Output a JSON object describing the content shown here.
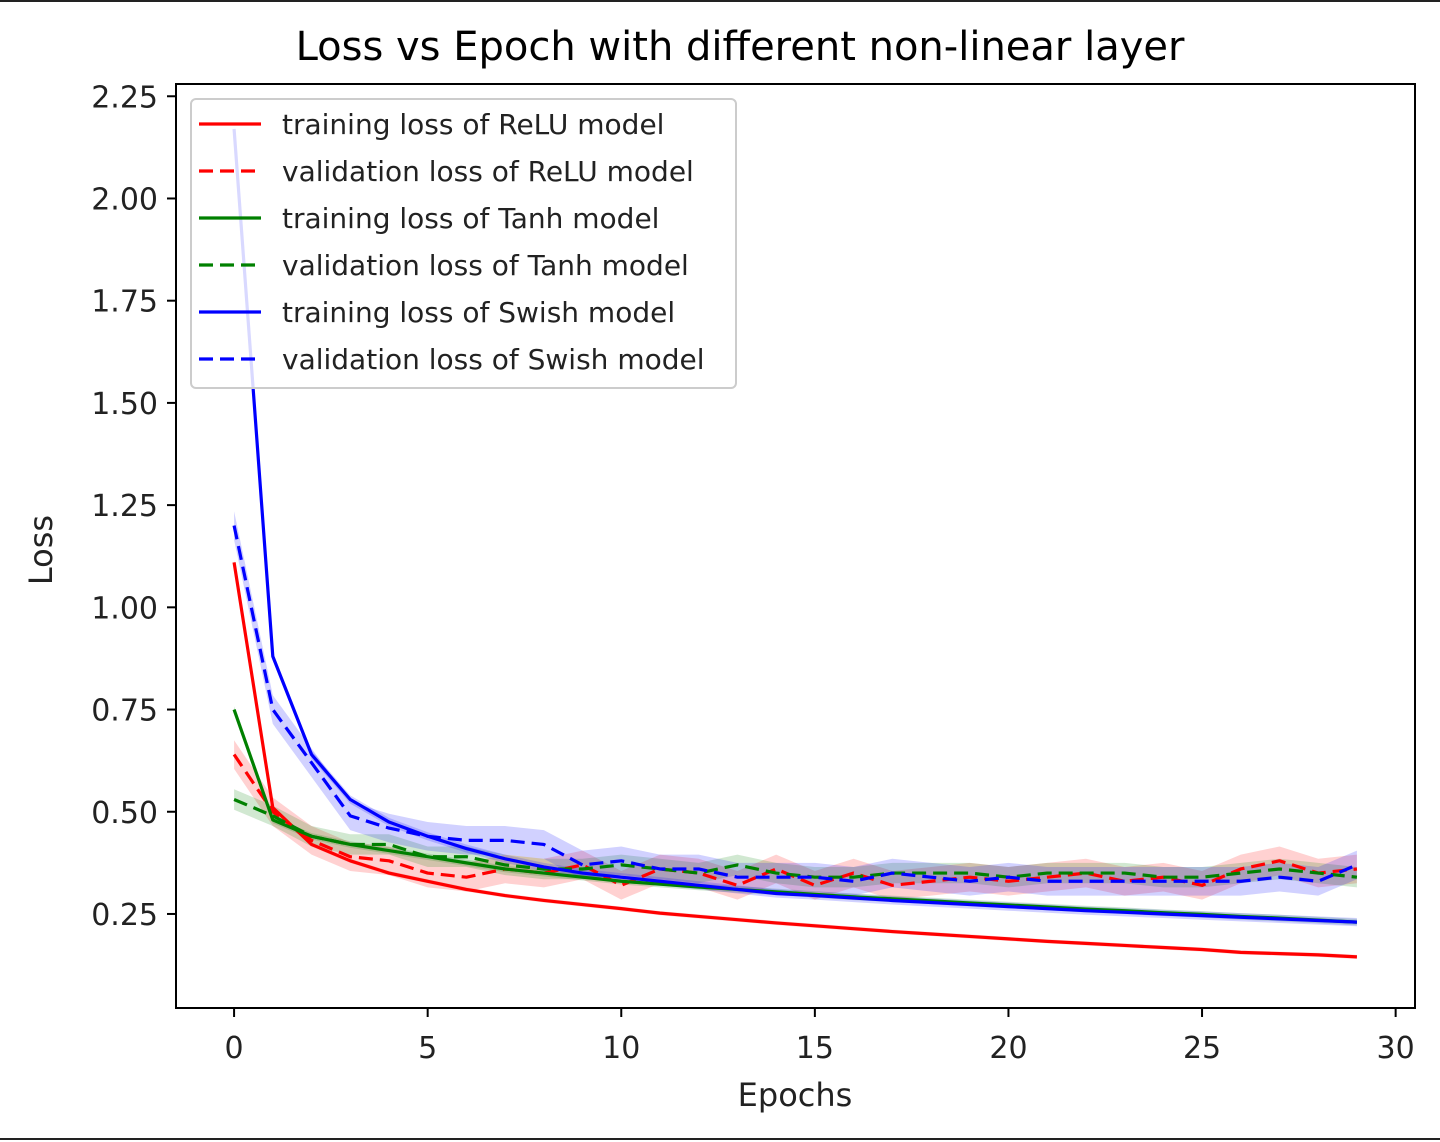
{
  "chart_data": {
    "type": "line",
    "title": "Loss vs Epoch with different non-linear layer",
    "xlabel": "Epochs",
    "ylabel": "Loss",
    "xlim": [
      -1.5,
      30.5
    ],
    "ylim": [
      0.02,
      2.28
    ],
    "xticks": [
      0,
      5,
      10,
      15,
      20,
      25,
      30
    ],
    "yticks": [
      0.25,
      0.5,
      0.75,
      1.0,
      1.25,
      1.5,
      1.75,
      2.0,
      2.25
    ],
    "ytick_labels": [
      "0.25",
      "0.50",
      "0.75",
      "1.00",
      "1.25",
      "1.50",
      "1.75",
      "2.00",
      "2.25"
    ],
    "legend_position": "top-left",
    "grid": false,
    "x": [
      0,
      1,
      2,
      3,
      4,
      5,
      6,
      7,
      8,
      9,
      10,
      11,
      12,
      13,
      14,
      15,
      16,
      17,
      18,
      19,
      20,
      21,
      22,
      23,
      24,
      25,
      26,
      27,
      28,
      29
    ],
    "series": [
      {
        "name": "training loss of ReLU model",
        "color": "#ff0000",
        "dash": "solid",
        "values": [
          1.11,
          0.51,
          0.42,
          0.38,
          0.35,
          0.33,
          0.31,
          0.295,
          0.283,
          0.273,
          0.263,
          0.252,
          0.244,
          0.236,
          0.228,
          0.221,
          0.214,
          0.207,
          0.201,
          0.195,
          0.189,
          0.183,
          0.178,
          0.173,
          0.168,
          0.163,
          0.156,
          0.153,
          0.15,
          0.145
        ],
        "band": 0.005
      },
      {
        "name": "validation loss of ReLU model",
        "color": "#ff0000",
        "dash": "dashed",
        "values": [
          0.64,
          0.5,
          0.43,
          0.39,
          0.38,
          0.35,
          0.34,
          0.36,
          0.35,
          0.37,
          0.32,
          0.36,
          0.35,
          0.32,
          0.36,
          0.32,
          0.35,
          0.32,
          0.33,
          0.34,
          0.33,
          0.34,
          0.35,
          0.33,
          0.34,
          0.32,
          0.36,
          0.38,
          0.35,
          0.36
        ],
        "band": 0.035
      },
      {
        "name": "training loss of Tanh model",
        "color": "#008000",
        "dash": "solid",
        "values": [
          0.75,
          0.48,
          0.44,
          0.42,
          0.405,
          0.39,
          0.375,
          0.36,
          0.35,
          0.34,
          0.33,
          0.323,
          0.316,
          0.31,
          0.304,
          0.298,
          0.292,
          0.287,
          0.282,
          0.277,
          0.272,
          0.267,
          0.262,
          0.258,
          0.253,
          0.249,
          0.244,
          0.24,
          0.235,
          0.23
        ],
        "band": 0.008
      },
      {
        "name": "validation loss of Tanh model",
        "color": "#008000",
        "dash": "dashed",
        "values": [
          0.53,
          0.49,
          0.44,
          0.42,
          0.42,
          0.39,
          0.39,
          0.37,
          0.36,
          0.36,
          0.37,
          0.36,
          0.35,
          0.37,
          0.35,
          0.34,
          0.34,
          0.35,
          0.35,
          0.35,
          0.34,
          0.35,
          0.35,
          0.35,
          0.34,
          0.34,
          0.35,
          0.36,
          0.35,
          0.34
        ],
        "band": 0.025
      },
      {
        "name": "training loss of Swish model",
        "color": "#0000ff",
        "dash": "solid",
        "values": [
          2.17,
          0.88,
          0.64,
          0.53,
          0.475,
          0.44,
          0.41,
          0.385,
          0.365,
          0.35,
          0.34,
          0.33,
          0.32,
          0.31,
          0.3,
          0.295,
          0.289,
          0.283,
          0.278,
          0.273,
          0.268,
          0.263,
          0.258,
          0.254,
          0.25,
          0.246,
          0.242,
          0.238,
          0.234,
          0.23
        ],
        "band": 0.01
      },
      {
        "name": "validation loss of Swish model",
        "color": "#0000ff",
        "dash": "dashed",
        "values": [
          1.2,
          0.75,
          0.62,
          0.49,
          0.46,
          0.44,
          0.43,
          0.43,
          0.42,
          0.37,
          0.38,
          0.36,
          0.36,
          0.34,
          0.34,
          0.34,
          0.33,
          0.35,
          0.34,
          0.33,
          0.34,
          0.33,
          0.33,
          0.33,
          0.33,
          0.33,
          0.33,
          0.34,
          0.33,
          0.37
        ],
        "band": 0.035
      }
    ]
  }
}
